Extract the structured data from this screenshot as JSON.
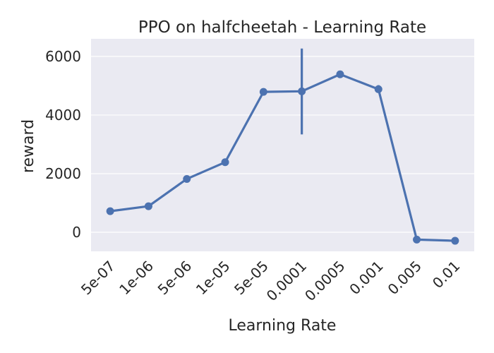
{
  "chart_data": {
    "type": "line",
    "title": "PPO on halfcheetah - Learning Rate",
    "xlabel": "Learning Rate",
    "ylabel": "reward",
    "categories": [
      "5e-07",
      "1e-06",
      "5e-06",
      "1e-05",
      "5e-05",
      "0.0001",
      "0.0005",
      "0.001",
      "0.005",
      "0.01"
    ],
    "series": [
      {
        "values": [
          720,
          890,
          1820,
          2390,
          4790,
          4810,
          5390,
          4880,
          -250,
          -290
        ],
        "error_low": [
          720,
          820,
          1820,
          2390,
          4790,
          3340,
          5390,
          4760,
          -250,
          -290
        ],
        "error_high": [
          720,
          960,
          1820,
          2390,
          4790,
          6270,
          5390,
          5020,
          -250,
          -290
        ],
        "color": "#4c72b0"
      }
    ],
    "ylim": [
      -650,
      6600
    ],
    "yticks": [
      0,
      2000,
      4000,
      6000
    ],
    "grid": true,
    "background": "#eaeaf2"
  }
}
